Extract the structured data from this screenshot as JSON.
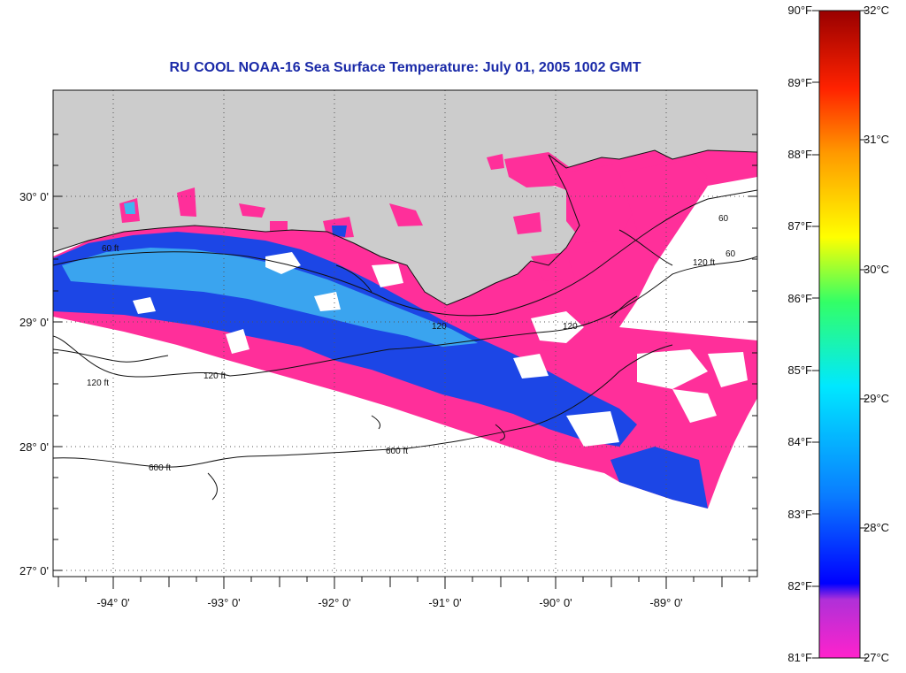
{
  "title": "RU COOL  NOAA-16  Sea Surface Temperature:  July 01, 2005 1002 GMT",
  "map": {
    "lon_ticks": [
      "-94° 0'",
      "-93° 0'",
      "-92° 0'",
      "-91° 0'",
      "-90° 0'",
      "-89° 0'"
    ],
    "lat_ticks": [
      "30° 0'",
      "29° 0'",
      "28° 0'",
      "27° 0'"
    ],
    "contour_labels": [
      "60 ft",
      "120 ft",
      "120 ft",
      "600 ft",
      "600 ft",
      "120",
      "120",
      "60",
      "120 ft",
      "60"
    ],
    "colors": {
      "land": "#cccccc",
      "cool_water": "#ff2f9a",
      "warm_water_blue": "#1c46e6",
      "warm_water_cyan": "#3fb5f0",
      "no_data": "#ffffff",
      "contour": "#111111"
    }
  },
  "colorbar": {
    "fahrenheit_labels": [
      "90°F",
      "89°F",
      "88°F",
      "87°F",
      "86°F",
      "85°F",
      "84°F",
      "83°F",
      "82°F",
      "81°F"
    ],
    "celsius_labels": [
      "32°C",
      "31°C",
      "30°C",
      "29°C",
      "28°C",
      "27°C"
    ],
    "colors": [
      "#ff22cc",
      "#7a3ad8",
      "#0000ff",
      "#0a7cff",
      "#00e8ff",
      "#33ff66",
      "#ffff00",
      "#ff9900",
      "#ff2200",
      "#990000"
    ]
  }
}
